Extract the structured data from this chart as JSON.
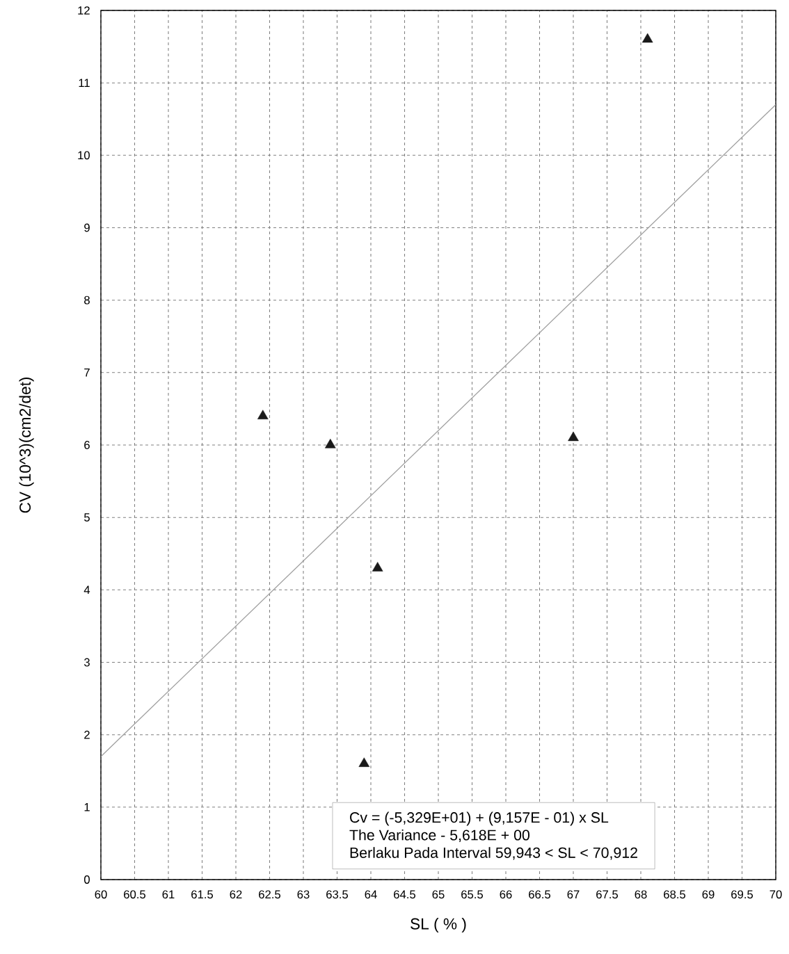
{
  "chart_data": {
    "type": "scatter",
    "xlabel": "SL ( % )",
    "ylabel": "CV (10^3)(cm2/det)",
    "xlim": [
      60,
      70
    ],
    "xticks": [
      60,
      60.5,
      61,
      61.5,
      62,
      62.5,
      63,
      63.5,
      64,
      64.5,
      65,
      65.5,
      66,
      66.5,
      67,
      67.5,
      68,
      68.5,
      69,
      69.5,
      70
    ],
    "ylim": [
      0,
      12
    ],
    "yticks": [
      0,
      1,
      2,
      3,
      4,
      5,
      6,
      7,
      8,
      9,
      10,
      11,
      12
    ],
    "grid": true,
    "series": [
      {
        "marker": "triangle",
        "color": "#1a1a1a",
        "x": [
          62.4,
          63.4,
          63.9,
          64.1,
          67.0,
          68.1
        ],
        "values": [
          6.4,
          6.0,
          1.6,
          4.3,
          6.1,
          11.6
        ]
      },
      {
        "type": "line",
        "marker": "none",
        "color": "#a0a0a0",
        "x": [
          60,
          70
        ],
        "values": [
          1.7,
          10.7
        ]
      }
    ],
    "annotations": [
      "Cv = (-5,329E+01) + (9,157E - 01) x SL",
      "The Variance - 5,618E + 00",
      "Berlaku Pada Interval 59,943 < SL < 70,912"
    ]
  }
}
